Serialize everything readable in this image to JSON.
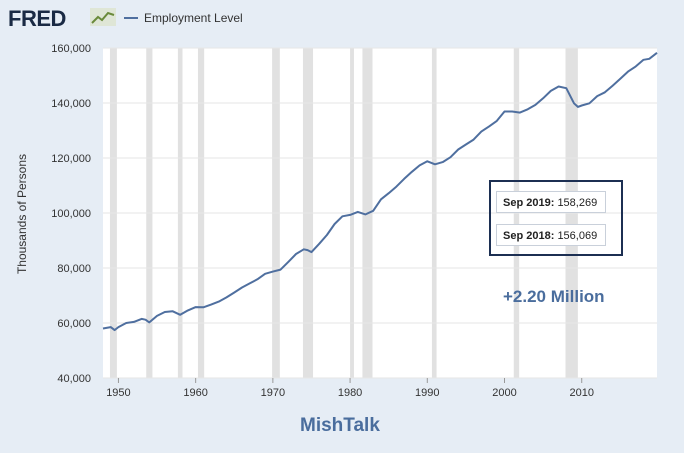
{
  "header": {
    "logo_text": "FRED",
    "logo_icon": "chart-trend-icon"
  },
  "chart_data": {
    "type": "line",
    "title": "",
    "xlabel": "",
    "ylabel": "Thousands of Persons",
    "legend_position": "top-left",
    "grid": true,
    "xlim": [
      1948,
      2019.75
    ],
    "ylim": [
      40000,
      160000
    ],
    "x_ticks": [
      1950,
      1960,
      1970,
      1980,
      1990,
      2000,
      2010
    ],
    "y_ticks": [
      40000,
      60000,
      80000,
      100000,
      120000,
      140000,
      160000
    ],
    "y_tick_labels": [
      "40,000",
      "60,000",
      "80,000",
      "100,000",
      "120,000",
      "140,000",
      "160,000"
    ],
    "recessions": [
      [
        1948.9,
        1949.8
      ],
      [
        1953.6,
        1954.4
      ],
      [
        1957.7,
        1958.3
      ],
      [
        1960.3,
        1961.1
      ],
      [
        1969.9,
        1970.9
      ],
      [
        1973.9,
        1975.2
      ],
      [
        1980.0,
        1980.5
      ],
      [
        1981.6,
        1982.9
      ],
      [
        1990.6,
        1991.2
      ],
      [
        2001.2,
        2001.9
      ],
      [
        2007.9,
        2009.5
      ]
    ],
    "series": [
      {
        "name": "Employment Level",
        "color": "#4f6f9f",
        "x": [
          1948,
          1949,
          1949.5,
          1950,
          1951,
          1952,
          1953,
          1953.5,
          1954,
          1955,
          1956,
          1957,
          1958,
          1959,
          1960,
          1961,
          1962,
          1963,
          1964,
          1965,
          1966,
          1967,
          1968,
          1969,
          1970,
          1971,
          1972,
          1973,
          1974,
          1974.5,
          1975,
          1976,
          1977,
          1978,
          1979,
          1980,
          1981,
          1982,
          1983,
          1984,
          1985,
          1986,
          1987,
          1988,
          1989,
          1990,
          1991,
          1992,
          1993,
          1994,
          1995,
          1996,
          1997,
          1998,
          1999,
          2000,
          2001,
          2002,
          2003,
          2004,
          2005,
          2006,
          2007,
          2008,
          2009,
          2009.5,
          2010,
          2011,
          2012,
          2013,
          2014,
          2015,
          2016,
          2017,
          2018,
          2018.75,
          2019.75
        ],
        "values": [
          58000,
          58500,
          57400,
          58500,
          60000,
          60400,
          61500,
          61200,
          60200,
          62600,
          64000,
          64300,
          63000,
          64600,
          65800,
          65700,
          66700,
          67800,
          69300,
          71100,
          72900,
          74400,
          75900,
          77900,
          78700,
          79400,
          82200,
          85100,
          86800,
          86500,
          85800,
          88800,
          92000,
          96000,
          98800,
          99300,
          100400,
          99500,
          100800,
          105000,
          107200,
          109600,
          112400,
          115000,
          117300,
          118800,
          117700,
          118500,
          120300,
          123100,
          124900,
          126700,
          129600,
          131500,
          133500,
          136900,
          136900,
          136500,
          137700,
          139300,
          141700,
          144400,
          146000,
          145400,
          139900,
          138600,
          139100,
          139900,
          142500,
          143900,
          146300,
          148800,
          151400,
          153300,
          155700,
          156069,
          158269
        ]
      }
    ],
    "tooltips": [
      {
        "date": "Sep 2019:",
        "value": "158,269"
      },
      {
        "date": "Sep 2018:",
        "value": "156,069"
      }
    ],
    "annotation": "+2.20 Million"
  },
  "footer": {
    "credit": "MishTalk"
  }
}
